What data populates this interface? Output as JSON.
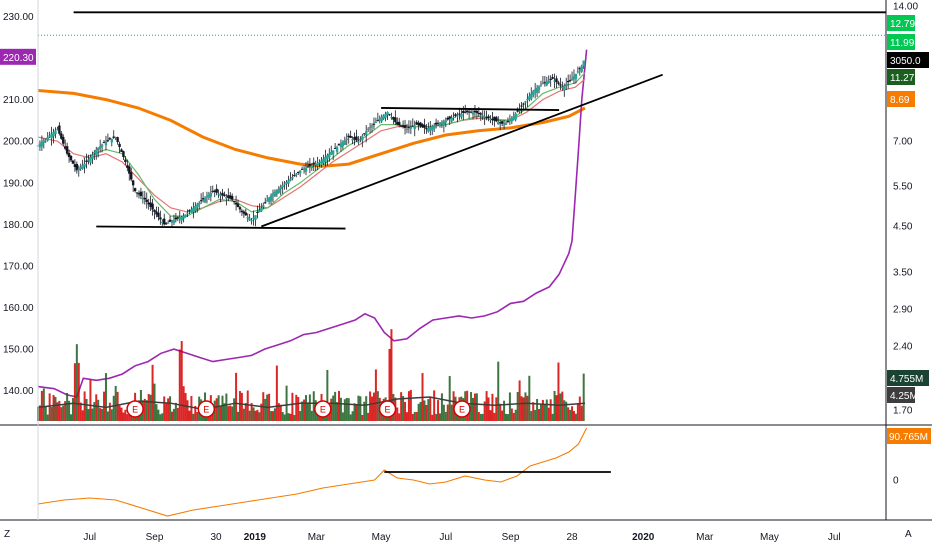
{
  "chart_data": {
    "type": "line",
    "colors": {
      "price_up": "#26a69a",
      "price_down": "#ef5350",
      "candle": "#131722",
      "ma_long": "#f57c00",
      "ma_fast": "#66bb6a",
      "ma_slow": "#e57373",
      "overlay": "#9c27b0",
      "trendline": "#000000",
      "vol_up": "#1b5e20",
      "vol_down": "#d50000",
      "vol_avg": "#3d3d3d",
      "indicator": "#f57c00"
    },
    "x_axis": {
      "ticks": [
        {
          "label": "Jul",
          "t": 2
        },
        {
          "label": "Sep",
          "t": 4
        },
        {
          "label": "30",
          "t": 5.9
        },
        {
          "label": "2019",
          "t": 7.1,
          "bold": true
        },
        {
          "label": "Mar",
          "t": 9
        },
        {
          "label": "May",
          "t": 11
        },
        {
          "label": "Jul",
          "t": 13
        },
        {
          "label": "Sep",
          "t": 15
        },
        {
          "label": "28",
          "t": 16.9
        },
        {
          "label": "2020",
          "t": 19.1,
          "bold": true
        },
        {
          "label": "Mar",
          "t": 21
        },
        {
          "label": "May",
          "t": 23
        },
        {
          "label": "Jul",
          "t": 25
        }
      ],
      "range": [
        0.4,
        26.6
      ]
    },
    "left_axis": {
      "ticks": [
        "140.00",
        "150.00",
        "160.00",
        "170.00",
        "180.00",
        "190.00",
        "200.00",
        "210.00",
        "220.00",
        "230.00"
      ],
      "range": [
        132,
        233
      ],
      "last_value": "220.30"
    },
    "right_axis": {
      "ticks": [
        "1.70",
        "2.40",
        "2.90",
        "3.50",
        "4.50",
        "5.50",
        "7.00",
        "14.00"
      ],
      "scale": "log",
      "labels": [
        {
          "text": "12.79",
          "color": "#00c853"
        },
        {
          "text": "11.99",
          "color": "#00c853"
        },
        {
          "text": "3050.0",
          "color": "#000000"
        },
        {
          "text": "11.27",
          "color": "#1b5e20"
        },
        {
          "text": "8.69",
          "color": "#f57c00"
        },
        {
          "text": "4.755M",
          "color": "#1b4332"
        },
        {
          "text": "4.25M",
          "color": "#3d3d3d"
        }
      ]
    },
    "lower_panel": {
      "ticks": [
        "0"
      ],
      "last_label": "90.765M"
    },
    "earnings_markers": [
      "E",
      "E",
      "E",
      "E",
      "E"
    ],
    "earnings_t": [
      3.4,
      5.6,
      9.2,
      11.2,
      13.5
    ],
    "price_series": [
      [
        0.4,
        199
      ],
      [
        0.7,
        201
      ],
      [
        1,
        203
      ],
      [
        1.3,
        197
      ],
      [
        1.6,
        193
      ],
      [
        1.9,
        195
      ],
      [
        2.2,
        198
      ],
      [
        2.5,
        200
      ],
      [
        2.8,
        201
      ],
      [
        3.1,
        195
      ],
      [
        3.4,
        188
      ],
      [
        3.7,
        186
      ],
      [
        4,
        183
      ],
      [
        4.3,
        180
      ],
      [
        4.6,
        181
      ],
      [
        4.9,
        182
      ],
      [
        5.2,
        184
      ],
      [
        5.5,
        186
      ],
      [
        5.8,
        188
      ],
      [
        6.1,
        187
      ],
      [
        6.4,
        186
      ],
      [
        6.7,
        183
      ],
      [
        7,
        181
      ],
      [
        7.3,
        184
      ],
      [
        7.6,
        187
      ],
      [
        7.9,
        189
      ],
      [
        8.2,
        191
      ],
      [
        8.5,
        193
      ],
      [
        8.8,
        194
      ],
      [
        9.1,
        195
      ],
      [
        9.4,
        197
      ],
      [
        9.7,
        199
      ],
      [
        10,
        201
      ],
      [
        10.3,
        200
      ],
      [
        10.6,
        203
      ],
      [
        10.9,
        205
      ],
      [
        11.2,
        207
      ],
      [
        11.5,
        204
      ],
      [
        11.8,
        203
      ],
      [
        12.1,
        204
      ],
      [
        12.4,
        203
      ],
      [
        12.7,
        204
      ],
      [
        13,
        205
      ],
      [
        13.3,
        206
      ],
      [
        13.6,
        207
      ],
      [
        13.9,
        207
      ],
      [
        14.2,
        206
      ],
      [
        14.5,
        205
      ],
      [
        14.8,
        204
      ],
      [
        15.1,
        206
      ],
      [
        15.4,
        209
      ],
      [
        15.7,
        212
      ],
      [
        16,
        214
      ],
      [
        16.3,
        215
      ],
      [
        16.6,
        213
      ],
      [
        16.9,
        215
      ],
      [
        17.2,
        218
      ],
      [
        17.3,
        220.3
      ]
    ],
    "ma_long": [
      [
        0.4,
        212.2
      ],
      [
        1.5,
        211.5
      ],
      [
        2.5,
        210
      ],
      [
        3.5,
        208
      ],
      [
        4.5,
        205
      ],
      [
        5.5,
        201
      ],
      [
        6.5,
        198
      ],
      [
        7.5,
        196
      ],
      [
        8.5,
        194.5
      ],
      [
        9.2,
        194
      ],
      [
        10,
        194.5
      ],
      [
        11,
        197
      ],
      [
        12,
        199.5
      ],
      [
        13,
        201.5
      ],
      [
        14,
        202.5
      ],
      [
        15,
        203.2
      ],
      [
        16,
        204.5
      ],
      [
        16.8,
        206
      ],
      [
        17.3,
        208
      ]
    ],
    "ma_fast": [
      [
        1.8,
        196
      ],
      [
        2.5,
        198
      ],
      [
        3,
        197
      ],
      [
        3.5,
        192
      ],
      [
        4,
        186
      ],
      [
        4.5,
        182
      ],
      [
        5,
        182
      ],
      [
        5.5,
        184
      ],
      [
        6,
        186
      ],
      [
        6.5,
        185.5
      ],
      [
        7,
        183
      ],
      [
        7.5,
        184
      ],
      [
        8,
        187.5
      ],
      [
        8.5,
        190
      ],
      [
        9,
        193
      ],
      [
        9.5,
        196
      ],
      [
        10,
        199
      ],
      [
        10.5,
        201
      ],
      [
        11,
        204
      ],
      [
        11.5,
        204
      ],
      [
        12,
        203.5
      ],
      [
        12.5,
        203.5
      ],
      [
        13,
        204
      ],
      [
        13.5,
        205
      ],
      [
        14,
        206
      ],
      [
        14.5,
        205
      ],
      [
        15,
        205
      ],
      [
        15.5,
        208
      ],
      [
        16,
        211.5
      ],
      [
        16.5,
        213
      ],
      [
        17,
        214
      ],
      [
        17.3,
        216.5
      ]
    ],
    "ma_slow": [
      [
        0.4,
        201
      ],
      [
        1,
        200
      ],
      [
        1.5,
        197
      ],
      [
        2,
        196
      ],
      [
        2.5,
        197
      ],
      [
        3,
        195
      ],
      [
        3.5,
        191
      ],
      [
        4,
        187
      ],
      [
        4.5,
        184
      ],
      [
        5,
        183
      ],
      [
        5.5,
        184
      ],
      [
        6,
        185.5
      ],
      [
        6.5,
        186
      ],
      [
        7,
        184.5
      ],
      [
        7.5,
        184
      ],
      [
        8,
        186.5
      ],
      [
        8.5,
        189
      ],
      [
        9,
        192
      ],
      [
        9.5,
        195
      ],
      [
        10,
        197.5
      ],
      [
        10.5,
        200
      ],
      [
        11,
        202.5
      ],
      [
        11.5,
        203.5
      ],
      [
        12,
        203.5
      ],
      [
        12.5,
        203.5
      ],
      [
        13,
        204
      ],
      [
        13.5,
        205
      ],
      [
        14,
        205.5
      ],
      [
        14.5,
        205.3
      ],
      [
        15,
        205
      ],
      [
        15.5,
        207
      ],
      [
        16,
        210
      ],
      [
        16.5,
        212
      ],
      [
        17,
        213
      ],
      [
        17.3,
        215
      ]
    ],
    "overlay_series": [
      [
        0.4,
        141
      ],
      [
        0.9,
        140.5
      ],
      [
        1.3,
        139
      ],
      [
        1.6,
        138.5
      ],
      [
        1.8,
        143
      ],
      [
        2.2,
        142.5
      ],
      [
        2.6,
        143
      ],
      [
        3,
        144
      ],
      [
        3.4,
        146
      ],
      [
        3.8,
        147
      ],
      [
        4.2,
        149
      ],
      [
        4.6,
        150
      ],
      [
        5,
        149
      ],
      [
        5.4,
        148
      ],
      [
        5.8,
        147
      ],
      [
        6.2,
        147.5
      ],
      [
        6.6,
        148
      ],
      [
        7,
        148.5
      ],
      [
        7.4,
        150
      ],
      [
        7.8,
        151
      ],
      [
        8.2,
        152
      ],
      [
        8.6,
        153.5
      ],
      [
        9,
        154
      ],
      [
        9.4,
        155
      ],
      [
        9.8,
        156
      ],
      [
        10.2,
        157
      ],
      [
        10.5,
        158.5
      ],
      [
        10.8,
        157.5
      ],
      [
        11.1,
        154
      ],
      [
        11.4,
        152
      ],
      [
        11.8,
        152.5
      ],
      [
        12.2,
        155
      ],
      [
        12.6,
        157
      ],
      [
        13,
        157.5
      ],
      [
        13.4,
        158
      ],
      [
        13.8,
        157.5
      ],
      [
        14.2,
        158
      ],
      [
        14.6,
        159
      ],
      [
        15,
        161
      ],
      [
        15.4,
        161.5
      ],
      [
        15.8,
        163.5
      ],
      [
        16.2,
        165
      ],
      [
        16.5,
        168
      ],
      [
        16.8,
        173
      ],
      [
        16.9,
        176
      ],
      [
        17,
        187
      ],
      [
        17.1,
        198
      ],
      [
        17.2,
        210
      ],
      [
        17.35,
        222
      ]
    ],
    "volume_t": [
      1.6,
      4.8,
      11.3,
      17.5
    ],
    "volume_avg": [
      [
        0.4,
        136
      ],
      [
        1.5,
        137
      ],
      [
        2.5,
        136
      ],
      [
        3.5,
        137.5
      ],
      [
        4.5,
        137
      ],
      [
        5.5,
        135.5
      ],
      [
        6.5,
        137
      ],
      [
        7.5,
        136
      ],
      [
        8.5,
        137
      ],
      [
        9.5,
        137
      ],
      [
        10.5,
        136.5
      ],
      [
        11.5,
        138
      ],
      [
        12.5,
        138.5
      ],
      [
        13.5,
        137
      ],
      [
        14.5,
        136.5
      ],
      [
        15.5,
        137
      ],
      [
        16.5,
        136.5
      ],
      [
        17.3,
        137
      ]
    ],
    "indicator_series": [
      [
        0.4,
        -0.6
      ],
      [
        1.2,
        -0.5
      ],
      [
        2,
        -0.45
      ],
      [
        2.8,
        -0.5
      ],
      [
        3.6,
        -0.7
      ],
      [
        4.4,
        -0.9
      ],
      [
        5.2,
        -0.75
      ],
      [
        6,
        -0.65
      ],
      [
        6.8,
        -0.55
      ],
      [
        7.6,
        -0.45
      ],
      [
        8.4,
        -0.35
      ],
      [
        9.2,
        -0.2
      ],
      [
        10,
        -0.1
      ],
      [
        10.8,
        0.0
      ],
      [
        11.1,
        0.25
      ],
      [
        11.5,
        0.05
      ],
      [
        12,
        0.0
      ],
      [
        12.5,
        -0.1
      ],
      [
        13,
        -0.05
      ],
      [
        13.6,
        0.1
      ],
      [
        14.2,
        0.0
      ],
      [
        14.7,
        -0.05
      ],
      [
        15.2,
        0.1
      ],
      [
        15.6,
        0.35
      ],
      [
        16,
        0.45
      ],
      [
        16.4,
        0.55
      ],
      [
        16.8,
        0.7
      ],
      [
        17.1,
        0.9
      ],
      [
        17.35,
        1.3
      ]
    ],
    "price_trendlines": [
      {
        "from": [
          2.2,
          179.5
        ],
        "to": [
          9.9,
          179
        ]
      },
      {
        "from": [
          7.3,
          179.5
        ],
        "to": [
          19.7,
          216
        ]
      },
      {
        "from": [
          11,
          208
        ],
        "to": [
          16.5,
          207.5
        ]
      },
      {
        "from": [
          1.5,
          231
        ],
        "to": [
          26.6,
          231
        ]
      }
    ],
    "indicator_trendline": {
      "from": [
        11.1,
        0.2
      ],
      "to": [
        18.1,
        0.2
      ]
    }
  }
}
